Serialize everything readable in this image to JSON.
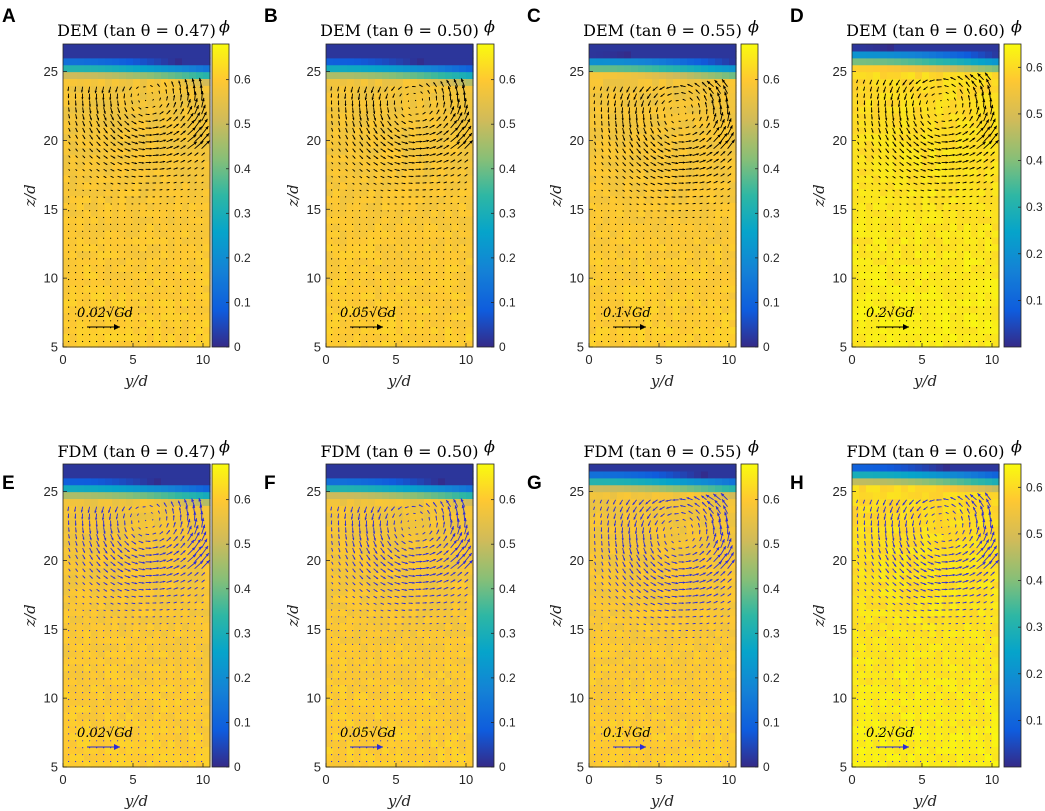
{
  "chart_data": [
    {
      "type": "heatmap",
      "panel_label": "A",
      "title": "DEM (tan θ = 0.47)",
      "xlabel": "y/d",
      "ylabel": "z/d",
      "xlim": [
        0,
        10.5
      ],
      "ylim": [
        5,
        27
      ],
      "x_ticks": [
        "0",
        "5",
        "10"
      ],
      "y_ticks": [
        "5",
        "10",
        "15",
        "20",
        "25"
      ],
      "colorbar": {
        "label": "ϕ",
        "range": [
          0,
          0.68
        ],
        "ticks": [
          "0",
          "0.1",
          "0.2",
          "0.3",
          "0.4",
          "0.5",
          "0.6"
        ]
      },
      "free_surface_z": 24.3,
      "vortex_center": [
        6.0,
        23.2
      ],
      "vector_color": "#000000",
      "reference_vector": {
        "label": "0.02√Gd"
      }
    },
    {
      "type": "heatmap",
      "panel_label": "B",
      "title": "DEM (tan θ = 0.50)",
      "xlabel": "y/d",
      "ylabel": "z/d",
      "xlim": [
        0,
        10.5
      ],
      "ylim": [
        5,
        27
      ],
      "x_ticks": [
        "0",
        "5",
        "10"
      ],
      "y_ticks": [
        "5",
        "10",
        "15",
        "20",
        "25"
      ],
      "colorbar": {
        "label": "ϕ",
        "range": [
          0,
          0.68
        ],
        "ticks": [
          "0",
          "0.1",
          "0.2",
          "0.3",
          "0.4",
          "0.5",
          "0.6"
        ]
      },
      "free_surface_z": 24.2,
      "vortex_center": [
        6.3,
        22.8
      ],
      "vector_color": "#000000",
      "reference_vector": {
        "label": "0.05√Gd"
      }
    },
    {
      "type": "heatmap",
      "panel_label": "C",
      "title": "DEM (tan θ = 0.55)",
      "xlabel": "y/d",
      "ylabel": "z/d",
      "xlim": [
        0,
        10.5
      ],
      "ylim": [
        5,
        27
      ],
      "x_ticks": [
        "0",
        "5",
        "10"
      ],
      "y_ticks": [
        "5",
        "10",
        "15",
        "20",
        "25"
      ],
      "colorbar": {
        "label": "ϕ",
        "range": [
          0,
          0.68
        ],
        "ticks": [
          "0",
          "0.1",
          "0.2",
          "0.3",
          "0.4",
          "0.5",
          "0.6"
        ]
      },
      "free_surface_z": 24.5,
      "vortex_center": [
        6.5,
        22.0
      ],
      "vector_color": "#000000",
      "reference_vector": {
        "label": "0.1√Gd"
      }
    },
    {
      "type": "heatmap",
      "panel_label": "D",
      "title": "DEM (tan θ = 0.60)",
      "xlabel": "y/d",
      "ylabel": "z/d",
      "xlim": [
        0,
        10.5
      ],
      "ylim": [
        5,
        27
      ],
      "x_ticks": [
        "0",
        "5",
        "10"
      ],
      "y_ticks": [
        "5",
        "10",
        "15",
        "20",
        "25"
      ],
      "colorbar": {
        "label": "ϕ",
        "range": [
          0,
          0.65
        ],
        "ticks": [
          "0.1",
          "0.2",
          "0.3",
          "0.4",
          "0.5",
          "0.6"
        ]
      },
      "free_surface_z": 25.0,
      "vortex_center": [
        6.5,
        22.5
      ],
      "vector_color": "#000000",
      "reference_vector": {
        "label": "0.2√Gd"
      }
    },
    {
      "type": "heatmap",
      "panel_label": "E",
      "title": "FDM (tan θ = 0.47)",
      "xlabel": "y/d",
      "ylabel": "z/d",
      "xlim": [
        0,
        10.5
      ],
      "ylim": [
        5,
        27
      ],
      "x_ticks": [
        "0",
        "5",
        "10"
      ],
      "y_ticks": [
        "5",
        "10",
        "15",
        "20",
        "25"
      ],
      "colorbar": {
        "label": "ϕ",
        "range": [
          0,
          0.68
        ],
        "ticks": [
          "0",
          "0.1",
          "0.2",
          "0.3",
          "0.4",
          "0.5",
          "0.6"
        ]
      },
      "free_surface_z": 24.2,
      "vortex_center": [
        6.0,
        23.0
      ],
      "vector_color": "#2b2bd9",
      "reference_vector": {
        "label": "0.02√Gd"
      }
    },
    {
      "type": "heatmap",
      "panel_label": "F",
      "title": "FDM (tan θ = 0.50)",
      "xlabel": "y/d",
      "ylabel": "z/d",
      "xlim": [
        0,
        10.5
      ],
      "ylim": [
        5,
        27
      ],
      "x_ticks": [
        "0",
        "5",
        "10"
      ],
      "y_ticks": [
        "5",
        "10",
        "15",
        "20",
        "25"
      ],
      "colorbar": {
        "label": "ϕ",
        "range": [
          0,
          0.68
        ],
        "ticks": [
          "0",
          "0.1",
          "0.2",
          "0.3",
          "0.4",
          "0.5",
          "0.6"
        ]
      },
      "free_surface_z": 24.3,
      "vortex_center": [
        6.3,
        22.7
      ],
      "vector_color": "#2b2bd9",
      "reference_vector": {
        "label": "0.05√Gd"
      }
    },
    {
      "type": "heatmap",
      "panel_label": "G",
      "title": "FDM (tan θ = 0.55)",
      "xlabel": "y/d",
      "ylabel": "z/d",
      "xlim": [
        0,
        10.5
      ],
      "ylim": [
        5,
        27
      ],
      "x_ticks": [
        "0",
        "5",
        "10"
      ],
      "y_ticks": [
        "5",
        "10",
        "15",
        "20",
        "25"
      ],
      "colorbar": {
        "label": "ϕ",
        "range": [
          0,
          0.68
        ],
        "ticks": [
          "0",
          "0.1",
          "0.2",
          "0.3",
          "0.4",
          "0.5",
          "0.6"
        ]
      },
      "free_surface_z": 24.8,
      "vortex_center": [
        6.5,
        22.0
      ],
      "vector_color": "#2b2bd9",
      "reference_vector": {
        "label": "0.1√Gd"
      }
    },
    {
      "type": "heatmap",
      "panel_label": "H",
      "title": "FDM (tan θ = 0.60)",
      "xlabel": "y/d",
      "ylabel": "z/d",
      "xlim": [
        0,
        10.5
      ],
      "ylim": [
        5,
        27
      ],
      "x_ticks": [
        "0",
        "5",
        "10"
      ],
      "y_ticks": [
        "5",
        "10",
        "15",
        "20",
        "25"
      ],
      "colorbar": {
        "label": "ϕ",
        "range": [
          0,
          0.65
        ],
        "ticks": [
          "0.1",
          "0.2",
          "0.3",
          "0.4",
          "0.5",
          "0.6"
        ]
      },
      "free_surface_z": 25.2,
      "vortex_center": [
        6.5,
        22.5
      ],
      "vector_color": "#2b2bd9",
      "reference_vector": {
        "label": "0.2√Gd"
      }
    }
  ]
}
